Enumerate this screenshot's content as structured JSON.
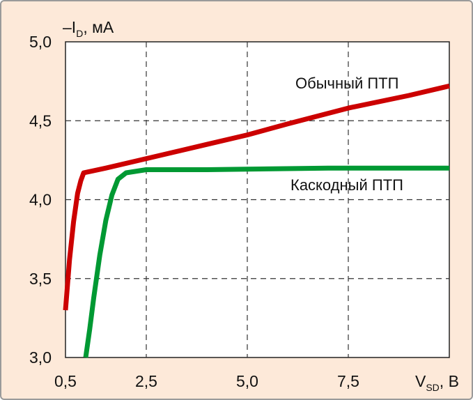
{
  "chart_data": {
    "type": "line",
    "title": "",
    "ylabel": {
      "prefix": "–I",
      "sub": "D",
      "suffix": ", мА"
    },
    "xlabel": {
      "prefix": "V",
      "sub": "SD",
      "suffix": ", В"
    },
    "xlim": [
      0.5,
      10.0
    ],
    "ylim": [
      3.0,
      5.0
    ],
    "x_ticks": [
      0.5,
      2.5,
      5.0,
      7.5
    ],
    "x_tick_labels": [
      "0,5",
      "2,5",
      "5,0",
      "7,5"
    ],
    "y_ticks": [
      3.0,
      3.5,
      4.0,
      4.5,
      5.0
    ],
    "y_tick_labels": [
      "3,0",
      "3,5",
      "4,0",
      "4,5",
      "5,0"
    ],
    "grid": true,
    "grid_style": "dashed",
    "colors": {
      "background": "#fde9d9",
      "plot_area": "#ffffff",
      "grid": "#333333",
      "frame_border": "#9a9a9a"
    },
    "series": [
      {
        "name": "Обычный ПТП",
        "color": "#cc0000",
        "points": [
          [
            0.5,
            3.3
          ],
          [
            0.6,
            3.62
          ],
          [
            0.7,
            3.86
          ],
          [
            0.8,
            4.04
          ],
          [
            0.88,
            4.12
          ],
          [
            0.95,
            4.17
          ],
          [
            1.5,
            4.2
          ],
          [
            2.5,
            4.26
          ],
          [
            4.0,
            4.35
          ],
          [
            5.0,
            4.41
          ],
          [
            6.0,
            4.48
          ],
          [
            7.5,
            4.58
          ],
          [
            9.0,
            4.66
          ],
          [
            10.0,
            4.72
          ]
        ]
      },
      {
        "name": "Каскодный ПТП",
        "color": "#009933",
        "points": [
          [
            1.0,
            3.0
          ],
          [
            1.1,
            3.18
          ],
          [
            1.2,
            3.38
          ],
          [
            1.35,
            3.65
          ],
          [
            1.5,
            3.87
          ],
          [
            1.65,
            4.03
          ],
          [
            1.8,
            4.13
          ],
          [
            2.0,
            4.17
          ],
          [
            2.5,
            4.19
          ],
          [
            4.0,
            4.19
          ],
          [
            7.0,
            4.2
          ],
          [
            10.0,
            4.2
          ]
        ]
      }
    ]
  }
}
